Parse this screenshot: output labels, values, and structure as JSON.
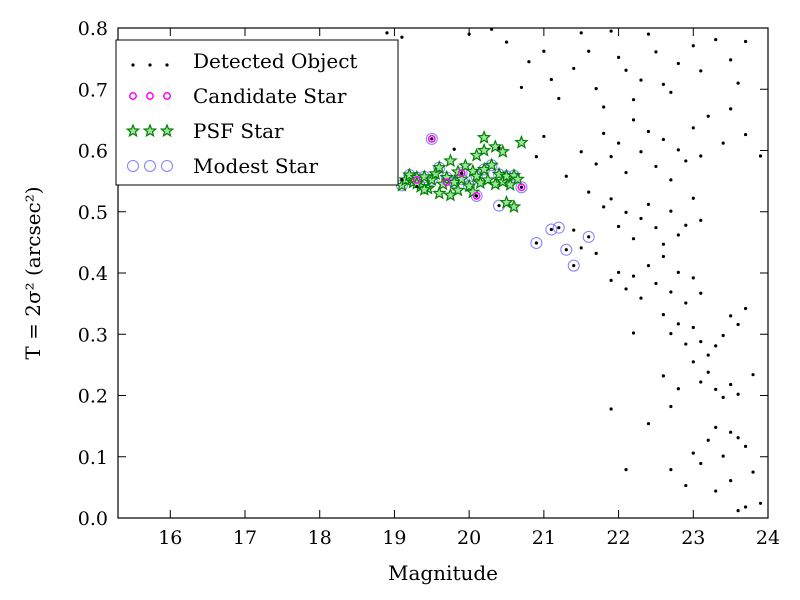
{
  "chart_data": {
    "type": "scatter",
    "title": "",
    "xlabel": "Magnitude",
    "ylabel": "T = 2σ² (arcsec²)",
    "xlim": [
      15.3,
      24.0
    ],
    "ylim": [
      0.0,
      0.8
    ],
    "xticks": [
      "16",
      "17",
      "18",
      "19",
      "20",
      "21",
      "22",
      "23",
      "24"
    ],
    "yticks": [
      "0.0",
      "0.1",
      "0.2",
      "0.3",
      "0.4",
      "0.5",
      "0.6",
      "0.7",
      "0.8"
    ],
    "grid": false,
    "legend_position": "top-left",
    "series": [
      {
        "name": "Detected Object",
        "marker": "dot",
        "color": "#000000",
        "points": [
          [
            17.0,
            0.548
          ],
          [
            17.6,
            0.553
          ],
          [
            18.0,
            0.549
          ],
          [
            18.3,
            0.556
          ],
          [
            18.6,
            0.551
          ],
          [
            18.9,
            0.547
          ],
          [
            19.1,
            0.552
          ],
          [
            19.3,
            0.541
          ],
          [
            19.5,
            0.619
          ],
          [
            19.9,
            0.563
          ],
          [
            20.1,
            0.526
          ],
          [
            20.4,
            0.51
          ],
          [
            20.7,
            0.54
          ],
          [
            20.9,
            0.449
          ],
          [
            21.1,
            0.471
          ],
          [
            21.2,
            0.474
          ],
          [
            21.3,
            0.438
          ],
          [
            21.4,
            0.412
          ],
          [
            21.6,
            0.459
          ],
          [
            18.9,
            0.792
          ],
          [
            19.1,
            0.785
          ],
          [
            20.0,
            0.79
          ],
          [
            20.3,
            0.798
          ],
          [
            20.5,
            0.777
          ],
          [
            20.7,
            0.703
          ],
          [
            20.8,
            0.745
          ],
          [
            19.8,
            0.602
          ],
          [
            20.4,
            0.604
          ],
          [
            20.9,
            0.59
          ],
          [
            21.0,
            0.623
          ],
          [
            21.3,
            0.558
          ],
          [
            21.5,
            0.598
          ],
          [
            21.6,
            0.532
          ],
          [
            21.7,
            0.578
          ],
          [
            21.0,
            0.762
          ],
          [
            21.1,
            0.716
          ],
          [
            21.2,
            0.685
          ],
          [
            21.4,
            0.734
          ],
          [
            21.5,
            0.792
          ],
          [
            21.6,
            0.762
          ],
          [
            21.7,
            0.701
          ],
          [
            21.8,
            0.671
          ],
          [
            21.9,
            0.795
          ],
          [
            22.0,
            0.752
          ],
          [
            22.1,
            0.731
          ],
          [
            22.2,
            0.683
          ],
          [
            22.3,
            0.715
          ],
          [
            22.4,
            0.79
          ],
          [
            22.5,
            0.761
          ],
          [
            22.6,
            0.708
          ],
          [
            22.7,
            0.695
          ],
          [
            22.8,
            0.742
          ],
          [
            23.0,
            0.771
          ],
          [
            23.1,
            0.73
          ],
          [
            23.3,
            0.781
          ],
          [
            23.5,
            0.748
          ],
          [
            23.6,
            0.71
          ],
          [
            23.7,
            0.778
          ],
          [
            21.8,
            0.628
          ],
          [
            21.9,
            0.59
          ],
          [
            22.0,
            0.612
          ],
          [
            22.1,
            0.564
          ],
          [
            22.2,
            0.65
          ],
          [
            22.3,
            0.598
          ],
          [
            22.4,
            0.631
          ],
          [
            22.5,
            0.574
          ],
          [
            22.6,
            0.618
          ],
          [
            22.7,
            0.552
          ],
          [
            22.8,
            0.601
          ],
          [
            22.9,
            0.583
          ],
          [
            23.0,
            0.637
          ],
          [
            23.1,
            0.591
          ],
          [
            23.2,
            0.656
          ],
          [
            23.4,
            0.612
          ],
          [
            23.5,
            0.668
          ],
          [
            23.7,
            0.626
          ],
          [
            23.9,
            0.591
          ],
          [
            21.4,
            0.47
          ],
          [
            21.5,
            0.441
          ],
          [
            21.7,
            0.432
          ],
          [
            21.8,
            0.508
          ],
          [
            21.9,
            0.521
          ],
          [
            22.0,
            0.476
          ],
          [
            22.1,
            0.499
          ],
          [
            22.2,
            0.456
          ],
          [
            22.3,
            0.489
          ],
          [
            22.4,
            0.512
          ],
          [
            22.5,
            0.474
          ],
          [
            22.6,
            0.447
          ],
          [
            22.7,
            0.501
          ],
          [
            22.8,
            0.462
          ],
          [
            22.9,
            0.478
          ],
          [
            23.0,
            0.522
          ],
          [
            23.1,
            0.486
          ],
          [
            21.9,
            0.388
          ],
          [
            22.0,
            0.401
          ],
          [
            22.1,
            0.374
          ],
          [
            22.2,
            0.395
          ],
          [
            22.3,
            0.359
          ],
          [
            22.4,
            0.412
          ],
          [
            22.5,
            0.383
          ],
          [
            22.6,
            0.427
          ],
          [
            22.7,
            0.369
          ],
          [
            22.8,
            0.401
          ],
          [
            22.9,
            0.351
          ],
          [
            23.0,
            0.392
          ],
          [
            23.1,
            0.367
          ],
          [
            22.2,
            0.302
          ],
          [
            22.6,
            0.332
          ],
          [
            22.7,
            0.301
          ],
          [
            22.8,
            0.317
          ],
          [
            22.9,
            0.284
          ],
          [
            23.0,
            0.311
          ],
          [
            23.1,
            0.288
          ],
          [
            23.2,
            0.266
          ],
          [
            23.3,
            0.281
          ],
          [
            23.4,
            0.298
          ],
          [
            23.5,
            0.33
          ],
          [
            23.6,
            0.316
          ],
          [
            23.7,
            0.342
          ],
          [
            22.6,
            0.232
          ],
          [
            22.8,
            0.211
          ],
          [
            23.0,
            0.255
          ],
          [
            23.1,
            0.222
          ],
          [
            23.2,
            0.238
          ],
          [
            23.3,
            0.21
          ],
          [
            23.4,
            0.197
          ],
          [
            23.5,
            0.218
          ],
          [
            23.6,
            0.202
          ],
          [
            23.8,
            0.234
          ],
          [
            21.9,
            0.178
          ],
          [
            22.4,
            0.154
          ],
          [
            22.7,
            0.182
          ],
          [
            23.3,
            0.148
          ],
          [
            23.6,
            0.131
          ],
          [
            23.0,
            0.106
          ],
          [
            23.1,
            0.089
          ],
          [
            23.2,
            0.127
          ],
          [
            23.4,
            0.101
          ],
          [
            23.5,
            0.14
          ],
          [
            23.7,
            0.117
          ],
          [
            23.8,
            0.075
          ],
          [
            22.1,
            0.079
          ],
          [
            22.7,
            0.079
          ],
          [
            22.9,
            0.053
          ],
          [
            23.3,
            0.044
          ],
          [
            23.5,
            0.061
          ],
          [
            23.6,
            0.012
          ],
          [
            23.7,
            0.018
          ],
          [
            23.9,
            0.024
          ]
        ]
      },
      {
        "name": "Candidate Star",
        "marker": "circle",
        "color": "#ff00ff",
        "points": [
          [
            19.5,
            0.619
          ],
          [
            19.9,
            0.563
          ],
          [
            20.1,
            0.526
          ],
          [
            20.7,
            0.54
          ],
          [
            19.3,
            0.552
          ],
          [
            19.7,
            0.548
          ]
        ]
      },
      {
        "name": "PSF Star",
        "marker": "star",
        "color": "#008000",
        "points": [
          [
            19.1,
            0.543
          ],
          [
            19.15,
            0.552
          ],
          [
            19.2,
            0.56
          ],
          [
            19.25,
            0.548
          ],
          [
            19.3,
            0.556
          ],
          [
            19.35,
            0.541
          ],
          [
            19.4,
            0.557
          ],
          [
            19.45,
            0.538
          ],
          [
            19.5,
            0.552
          ],
          [
            19.55,
            0.562
          ],
          [
            19.6,
            0.572
          ],
          [
            19.65,
            0.545
          ],
          [
            19.7,
            0.556
          ],
          [
            19.75,
            0.583
          ],
          [
            19.8,
            0.548
          ],
          [
            19.85,
            0.565
          ],
          [
            19.9,
            0.553
          ],
          [
            19.95,
            0.575
          ],
          [
            20.0,
            0.542
          ],
          [
            20.05,
            0.566
          ],
          [
            20.1,
            0.558
          ],
          [
            20.15,
            0.547
          ],
          [
            20.2,
            0.569
          ],
          [
            20.25,
            0.552
          ],
          [
            20.3,
            0.576
          ],
          [
            20.35,
            0.545
          ],
          [
            20.4,
            0.561
          ],
          [
            20.45,
            0.549
          ],
          [
            20.5,
            0.558
          ],
          [
            20.55,
            0.544
          ],
          [
            20.6,
            0.559
          ],
          [
            20.65,
            0.553
          ],
          [
            19.6,
            0.53
          ],
          [
            19.85,
            0.535
          ],
          [
            20.05,
            0.532
          ],
          [
            19.4,
            0.536
          ],
          [
            20.2,
            0.621
          ],
          [
            20.2,
            0.6
          ],
          [
            20.35,
            0.606
          ],
          [
            20.45,
            0.598
          ],
          [
            20.7,
            0.613
          ],
          [
            20.1,
            0.592
          ],
          [
            20.5,
            0.515
          ],
          [
            20.6,
            0.508
          ],
          [
            19.75,
            0.527
          ],
          [
            19.3,
            0.546
          ]
        ]
      },
      {
        "name": "Modest Star",
        "marker": "ring",
        "color": "#8080ff",
        "points": [
          [
            19.5,
            0.619
          ],
          [
            19.9,
            0.563
          ],
          [
            20.1,
            0.526
          ],
          [
            20.4,
            0.51
          ],
          [
            20.7,
            0.54
          ],
          [
            20.9,
            0.449
          ],
          [
            21.1,
            0.471
          ],
          [
            21.2,
            0.474
          ],
          [
            21.3,
            0.438
          ],
          [
            21.4,
            0.412
          ],
          [
            21.6,
            0.459
          ],
          [
            19.1,
            0.543
          ],
          [
            19.2,
            0.56
          ],
          [
            19.3,
            0.556
          ],
          [
            19.4,
            0.557
          ],
          [
            19.5,
            0.552
          ],
          [
            19.6,
            0.572
          ],
          [
            19.7,
            0.556
          ],
          [
            19.8,
            0.548
          ],
          [
            19.9,
            0.553
          ],
          [
            20.0,
            0.542
          ],
          [
            20.1,
            0.558
          ],
          [
            20.2,
            0.569
          ],
          [
            20.3,
            0.576
          ],
          [
            20.4,
            0.561
          ],
          [
            20.5,
            0.558
          ],
          [
            20.6,
            0.559
          ]
        ]
      }
    ]
  }
}
